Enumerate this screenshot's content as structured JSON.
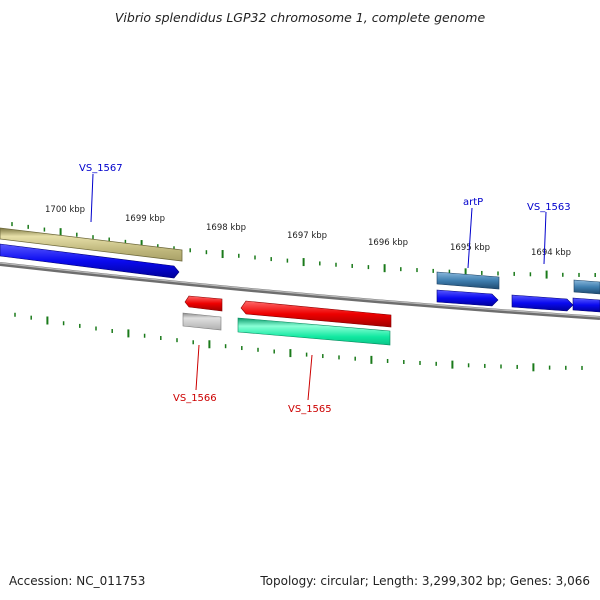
{
  "title": "Vibrio splendidus LGP32 chromosome 1, complete genome",
  "footer": {
    "accession": "Accession: NC_011753",
    "summary": "Topology: circular; Length: 3,299,302 bp; Genes: 3,066"
  },
  "colors": {
    "backbone": "#808080",
    "tick": "#1a7a1a",
    "label_forward": "#0000cc",
    "label_reverse": "#cc0000",
    "gene_blue": "#0a0af0",
    "gene_steel": "#3f7fb0",
    "gene_olive": "#bdb57a",
    "gene_red": "#ee0000",
    "gene_gray": "#b0b0b0",
    "gene_green": "#10e8a0"
  },
  "map": {
    "kbp_labels": [
      "1700 kbp",
      "1699 kbp",
      "1698 kbp",
      "1697 kbp",
      "1696 kbp",
      "1695 kbp",
      "1694 kbp"
    ],
    "genes": [
      {
        "label": "VS_1567",
        "strand": "+",
        "colors": [
          "gene_olive",
          "gene_blue"
        ]
      },
      {
        "label": "VS_1566",
        "strand": "-",
        "colors": [
          "gene_red",
          "gene_gray"
        ]
      },
      {
        "label": "VS_1565",
        "strand": "-",
        "colors": [
          "gene_red",
          "gene_green"
        ]
      },
      {
        "label": "artP",
        "strand": "+",
        "colors": [
          "gene_steel",
          "gene_blue"
        ]
      },
      {
        "label": "VS_1563",
        "strand": "+",
        "colors": [
          "gene_blue"
        ]
      },
      {
        "label": "",
        "strand": "+",
        "colors": [
          "gene_steel",
          "gene_blue"
        ]
      }
    ]
  }
}
